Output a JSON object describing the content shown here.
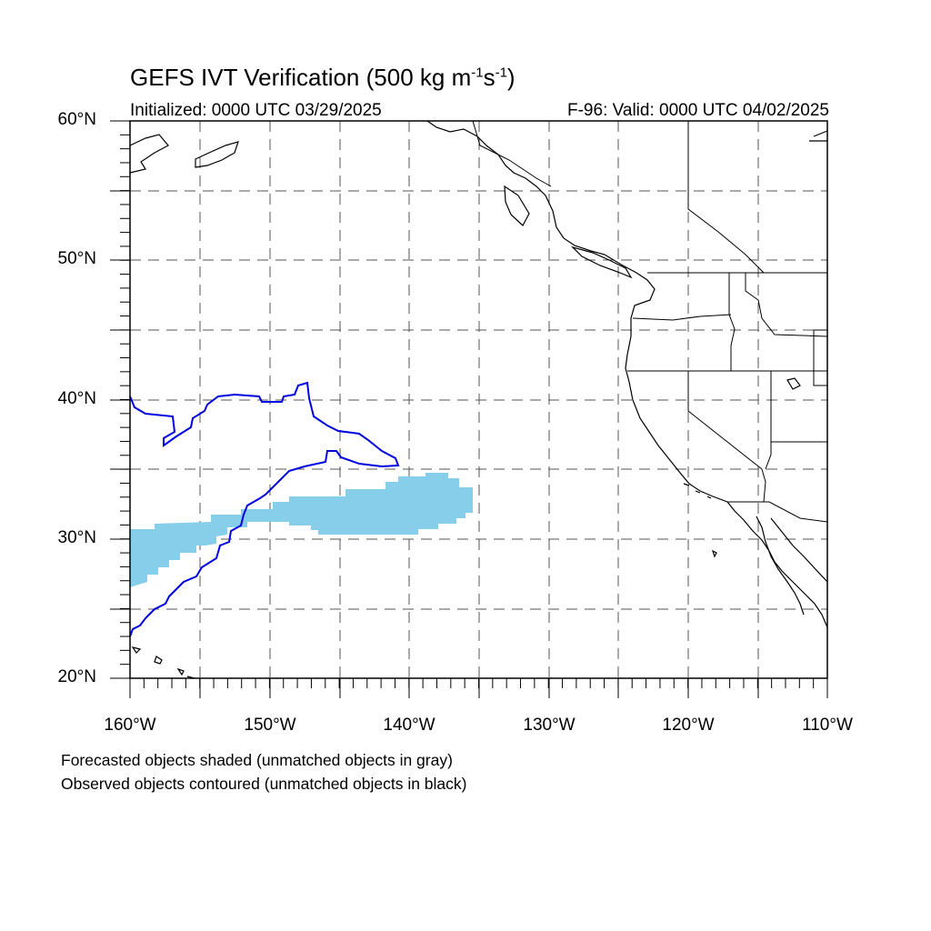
{
  "title": {
    "prefix": "GEFS IVT Verification (500 kg m",
    "exp1": "-1",
    "mid": "s",
    "exp2": "-1",
    "suffix": ")"
  },
  "initialized": "Initialized: 0000 UTC 03/29/2025",
  "valid": "F-96: Valid: 0000 UTC 04/02/2025",
  "lat_labels": [
    "60°N",
    "50°N",
    "40°N",
    "30°N",
    "20°N"
  ],
  "lon_labels": [
    "160°W",
    "150°W",
    "140°W",
    "130°W",
    "120°W",
    "110°W"
  ],
  "footnotes": [
    "Forecasted objects shaded (unmatched objects in gray)",
    "Observed objects contoured (unmatched objects in black)"
  ],
  "colors": {
    "forecast_fill": "#87ceeb",
    "observed_contour": "#0000e0",
    "coast": "#000000",
    "grid": "#555555"
  },
  "map_extent": {
    "lon": [
      -160,
      -110
    ],
    "lat": [
      20,
      60
    ]
  }
}
